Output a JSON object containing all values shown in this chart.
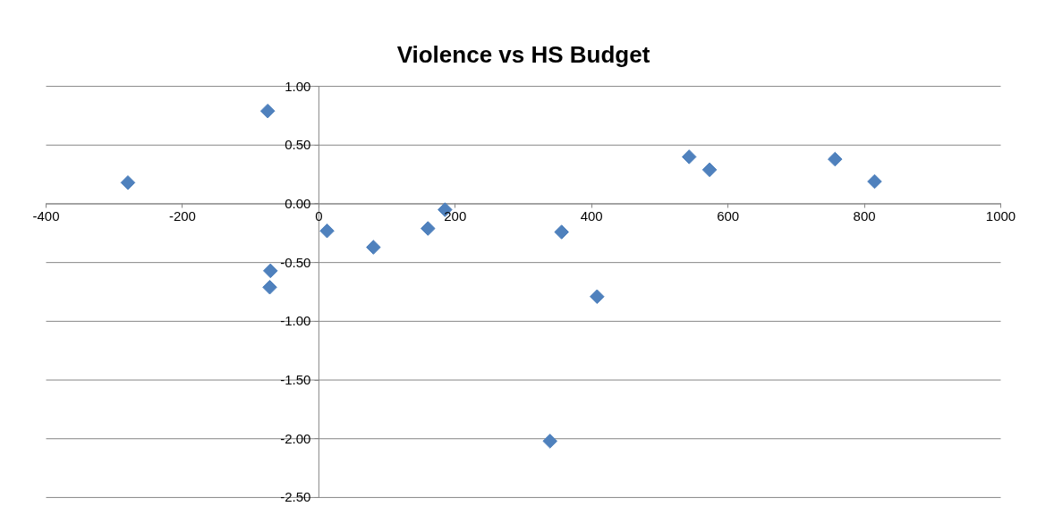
{
  "chart_data": {
    "type": "scatter",
    "title": "Violence vs HS Budget",
    "x": [
      -280,
      -75,
      -71,
      -72,
      12,
      80,
      160,
      185,
      339,
      356,
      408,
      543,
      573,
      757,
      815
    ],
    "series": [
      {
        "color": "#4f81bd",
        "values": [
          0.18,
          0.79,
          -0.57,
          -0.71,
          -0.23,
          -0.37,
          -0.21,
          -0.05,
          -2.02,
          -0.24,
          -0.79,
          0.4,
          0.29,
          0.38,
          0.19
        ]
      }
    ],
    "marker": "diamond",
    "grid": "y",
    "xlim": [
      -400,
      1000
    ],
    "xticks": [
      -400,
      -200,
      0,
      200,
      400,
      600,
      800,
      1000
    ],
    "ylim": [
      -2.5,
      1.0
    ],
    "yticks": [
      {
        "value": 1.0,
        "label": "1.00"
      },
      {
        "value": 0.5,
        "label": "0.50"
      },
      {
        "value": 0.0,
        "label": "0.00"
      },
      {
        "value": -0.5,
        "label": "-0.50"
      },
      {
        "value": -1.0,
        "label": "-1.00"
      },
      {
        "value": -1.5,
        "label": "-1.50"
      },
      {
        "value": -2.0,
        "label": "-2.00"
      },
      {
        "value": -2.5,
        "label": "-2.50"
      }
    ]
  }
}
